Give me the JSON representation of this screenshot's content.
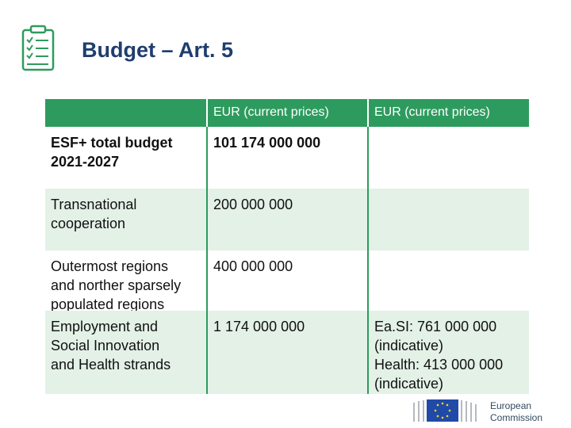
{
  "header": {
    "title": "Budget – Art. 5"
  },
  "table": {
    "columns": [
      "EUR (current prices)",
      "EUR (current prices)"
    ],
    "rows": [
      [
        [
          "ESF+ total budget",
          "2021-2027"
        ],
        [
          "101 174 000 000"
        ]
      ],
      [
        [
          "Transnational",
          "cooperation"
        ],
        [
          "200 000 000"
        ]
      ],
      [
        [
          "Outermost regions",
          "and norther sparsely",
          "populated regions"
        ],
        [
          "400 000 000"
        ]
      ],
      [
        [
          "Employment and",
          "Social Innovation",
          "and Health strands"
        ],
        [
          "1 174 000 000"
        ],
        [
          "Ea.SI: 761 000 000",
          "(indicative)",
          "Health: 413 000 000",
          "(indicative)"
        ]
      ]
    ]
  },
  "footer": {
    "logo_text": [
      "European",
      "Commission"
    ]
  }
}
